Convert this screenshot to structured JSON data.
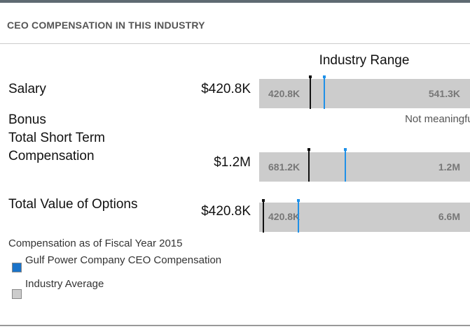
{
  "header": {
    "title": "CEO COMPENSATION IN THIS INDUSTRY"
  },
  "range_header": "Industry Range",
  "rows": [
    {
      "label": "Salary",
      "value": "$420.8K",
      "range_low": "420.8K",
      "range_high": "541.3K"
    },
    {
      "label": "Bonus",
      "note": "Not meaningful"
    },
    {
      "label": "Total Short Term Compensation",
      "value": "$1.2M",
      "range_low": "681.2K",
      "range_high": "1.2M"
    },
    {
      "label": "Total Value of Options",
      "value": "$420.8K",
      "range_low": "420.8K",
      "range_high": "6.6M"
    }
  ],
  "footnote": "Compensation as of Fiscal Year 2015",
  "legend": [
    {
      "label": "Gulf Power Company CEO Compensation",
      "color": "#1a73c9"
    },
    {
      "label": "Industry Average",
      "color": "#cccccc"
    }
  ]
}
